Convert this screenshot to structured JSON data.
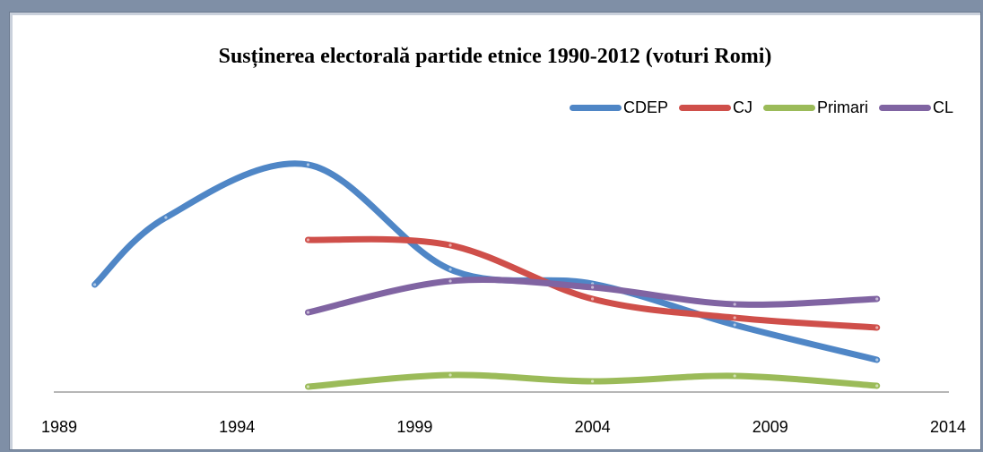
{
  "chart_data": {
    "type": "line",
    "title": "Susținerea electorală partide etnice 1990-2012 (voturi Romi)",
    "xlabel": "",
    "ylabel": "",
    "xlim": [
      1989,
      2014
    ],
    "xticks": [
      "1989",
      "1994",
      "1999",
      "2004",
      "2009",
      "2014"
    ],
    "ylim": [
      0,
      260
    ],
    "legend_position": "top-right",
    "smooth": true,
    "series": [
      {
        "name": "CDEP",
        "color": "#4f86c6",
        "points": [
          [
            1990,
            120
          ],
          [
            1992,
            195
          ],
          [
            1996,
            254
          ],
          [
            2000,
            137
          ],
          [
            2004,
            121
          ],
          [
            2008,
            75
          ],
          [
            2012,
            36
          ]
        ]
      },
      {
        "name": "CJ",
        "color": "#cf4f4a",
        "points": [
          [
            1996,
            170
          ],
          [
            2000,
            164
          ],
          [
            2004,
            104
          ],
          [
            2008,
            83
          ],
          [
            2012,
            72
          ]
        ]
      },
      {
        "name": "Primari",
        "color": "#9bbb59",
        "points": [
          [
            1996,
            6
          ],
          [
            2000,
            19
          ],
          [
            2004,
            12
          ],
          [
            2008,
            18
          ],
          [
            2012,
            7
          ]
        ]
      },
      {
        "name": "CL",
        "color": "#8064a2",
        "points": [
          [
            1996,
            89
          ],
          [
            2000,
            124
          ],
          [
            2004,
            117
          ],
          [
            2008,
            98
          ],
          [
            2012,
            104
          ]
        ]
      }
    ]
  }
}
